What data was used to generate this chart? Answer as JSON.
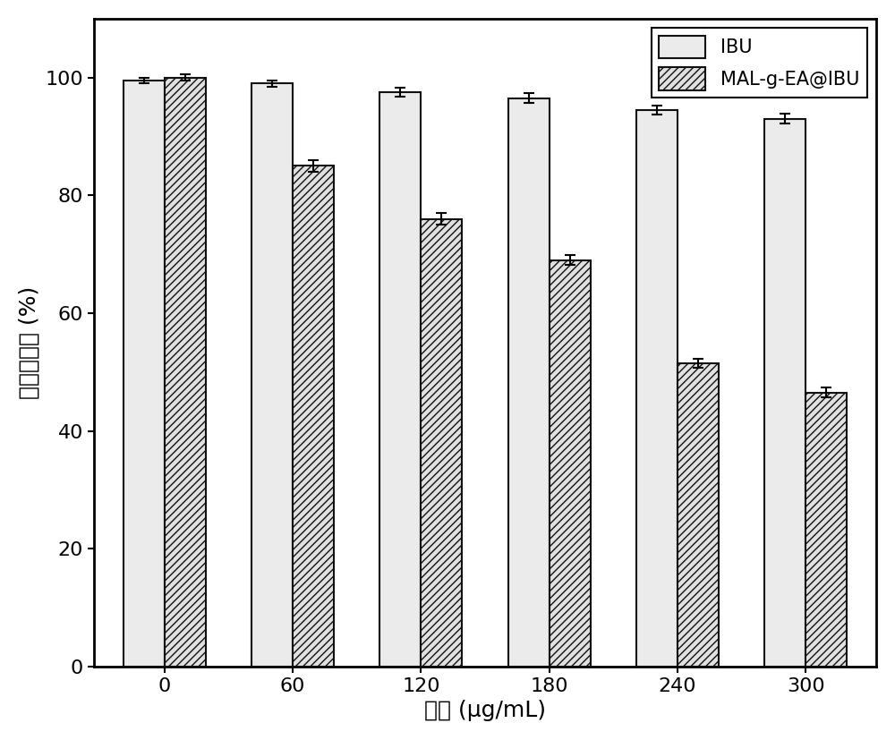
{
  "categories": [
    0,
    60,
    120,
    180,
    240,
    300
  ],
  "ibu_values": [
    99.5,
    99.0,
    97.5,
    96.5,
    94.5,
    93.0
  ],
  "mal_values": [
    100.0,
    85.0,
    76.0,
    69.0,
    51.5,
    46.5
  ],
  "ibu_errors": [
    0.5,
    0.5,
    0.8,
    0.8,
    0.8,
    0.8
  ],
  "mal_errors": [
    0.5,
    1.0,
    1.0,
    0.8,
    0.8,
    0.8
  ],
  "xlabel": "浓度 (μg/mL)",
  "ylabel": "细胞存活率 (%)",
  "ylim": [
    0,
    110
  ],
  "yticks": [
    0,
    20,
    40,
    60,
    80,
    100
  ],
  "bar_width": 0.32,
  "ibu_color": "#ebebeb",
  "mal_color": "#e0e0e0",
  "edge_color": "#111111",
  "legend_ibu": "IBU",
  "legend_mal": "MAL-g-EA@IBU",
  "label_fontsize": 18,
  "tick_fontsize": 16,
  "legend_fontsize": 15,
  "background_color": "#ffffff",
  "hatch_pattern": "////"
}
